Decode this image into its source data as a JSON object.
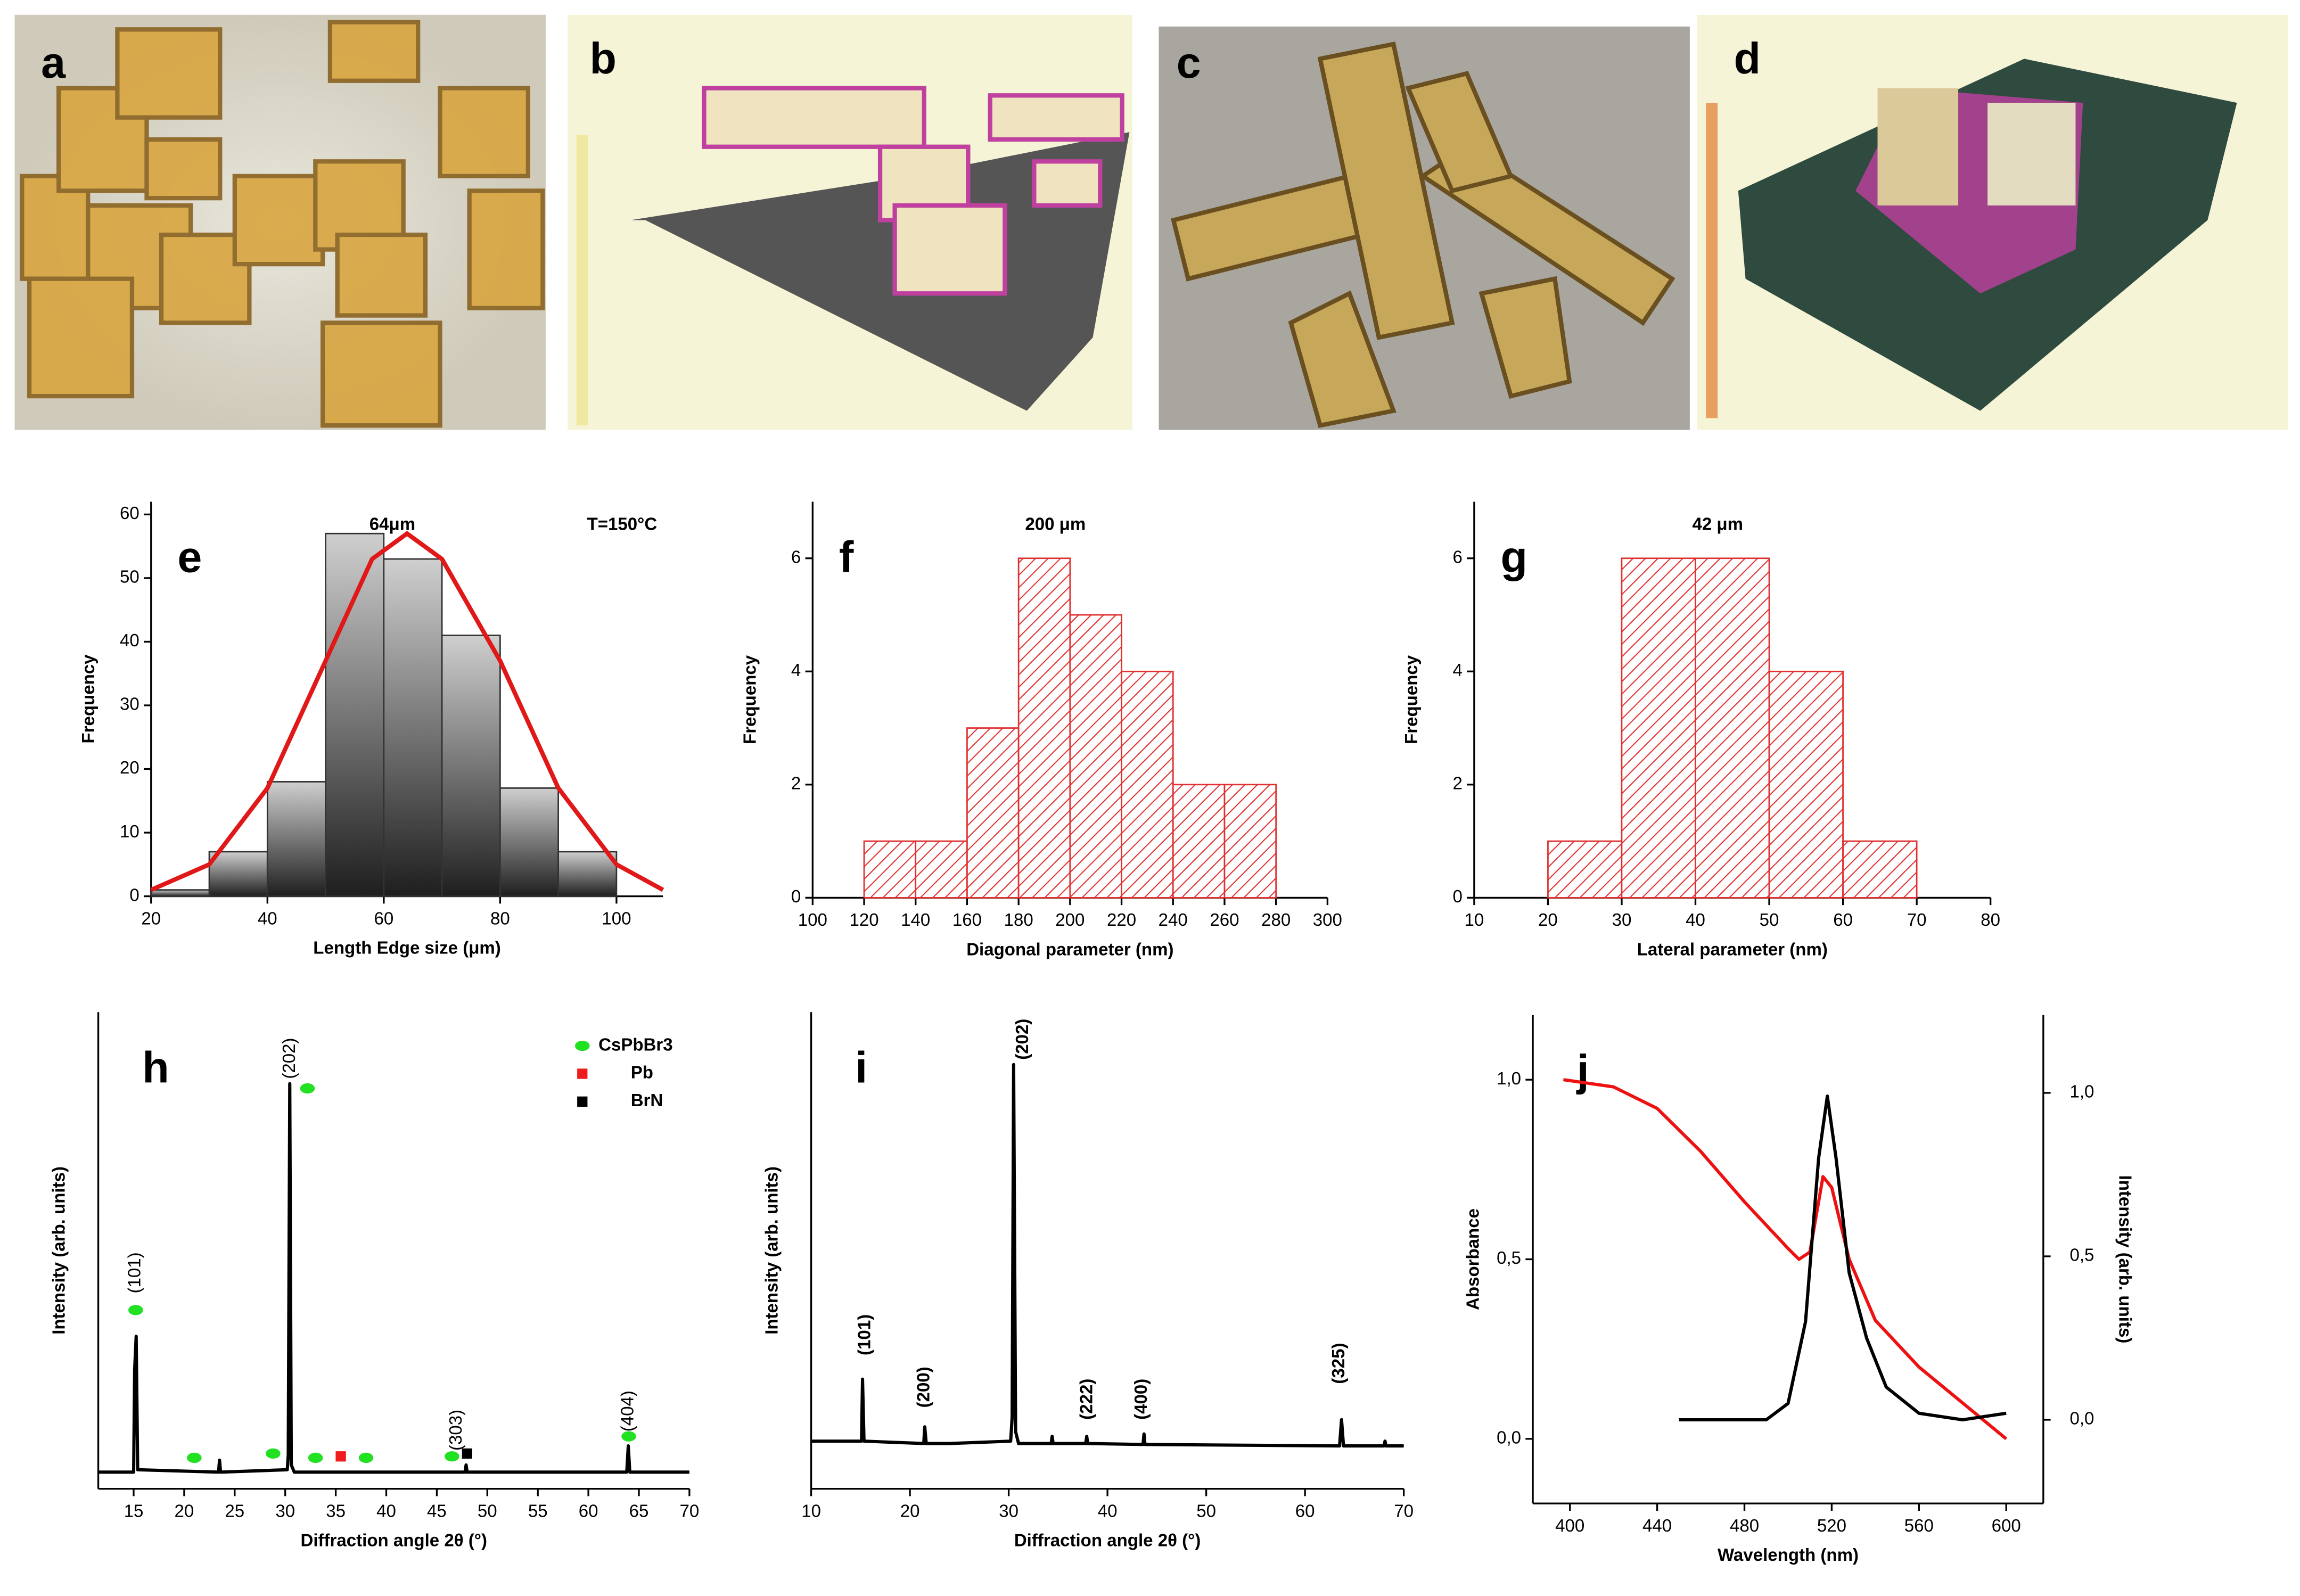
{
  "panels": [
    "a",
    "b",
    "c",
    "d"
  ],
  "chart_data": [
    {
      "type": "histogram",
      "label": "e",
      "title": "64μm",
      "annotation": "T=150°C",
      "xlabel": "Length Edge size (μm)",
      "ylabel": "Frequency",
      "bins": [
        20,
        30,
        40,
        50,
        60,
        70,
        80,
        90,
        100
      ],
      "values": [
        1,
        7,
        18,
        57,
        53,
        41,
        17,
        7
      ],
      "color": "#1e1e1e",
      "pattern": "gradient",
      "fit": {
        "color": "#e01818",
        "x": [
          20,
          30,
          40,
          50,
          58,
          64,
          70,
          80,
          90,
          100,
          108
        ],
        "values": [
          1,
          5,
          17,
          37,
          53,
          57,
          53,
          37,
          17,
          5,
          1
        ]
      },
      "xlim": [
        20,
        108
      ],
      "xticks": [
        20,
        40,
        60,
        80,
        100
      ],
      "ylim": [
        0,
        62
      ],
      "yticks": [
        0,
        10,
        20,
        30,
        40,
        50,
        60
      ]
    },
    {
      "type": "histogram",
      "label": "f",
      "title": "200 μm",
      "xlabel": "Diagonal parameter (nm)",
      "ylabel": "Frequency",
      "bins": [
        120,
        140,
        160,
        180,
        200,
        220,
        240,
        260,
        280
      ],
      "values": [
        1,
        1,
        3,
        6,
        5,
        4,
        2,
        2
      ],
      "color": "#e03030",
      "pattern": "hatch",
      "xlim": [
        100,
        300
      ],
      "xticks": [
        100,
        120,
        140,
        160,
        180,
        200,
        220,
        240,
        260,
        280,
        300
      ],
      "ylim": [
        0,
        7
      ],
      "yticks": [
        0,
        2,
        4,
        6
      ]
    },
    {
      "type": "histogram",
      "label": "g",
      "title": "42 μm",
      "xlabel": "Lateral parameter (nm)",
      "ylabel": "Frequency",
      "bins": [
        20,
        30,
        40,
        50,
        60,
        70
      ],
      "values": [
        1,
        6,
        6,
        4,
        1
      ],
      "color": "#e03030",
      "pattern": "hatch",
      "xlim": [
        10,
        80
      ],
      "xticks": [
        10,
        20,
        30,
        40,
        50,
        60,
        70,
        80
      ],
      "ylim": [
        0,
        7
      ],
      "yticks": [
        0,
        2,
        4,
        6
      ]
    },
    {
      "type": "line",
      "label": "h",
      "xlabel": "Diffraction angle 2θ (°)",
      "ylabel": "Intensity (arb. units)",
      "xlim": [
        11.5,
        70
      ],
      "xticks": [
        15,
        20,
        25,
        30,
        35,
        40,
        45,
        50,
        55,
        60,
        65,
        70
      ],
      "ylim": [
        0,
        1
      ],
      "series": [
        {
          "color": "#000000",
          "x": [
            11.5,
            15,
            15.1,
            15.25,
            15.4,
            23.4,
            23.5,
            23.6,
            30.2,
            30.3,
            30.45,
            30.6,
            30.9,
            47.8,
            47.9,
            48,
            63.8,
            63.95,
            64.1,
            70
          ],
          "values": [
            0.035,
            0.035,
            0.25,
            0.32,
            0.04,
            0.035,
            0.06,
            0.035,
            0.04,
            0.07,
            0.85,
            0.05,
            0.035,
            0.035,
            0.05,
            0.035,
            0.035,
            0.09,
            0.035,
            0.035
          ]
        }
      ],
      "markers": [
        {
          "name": "CsPbBr3",
          "color": "#22e022",
          "shape": "ellipse",
          "x": [
            15.2,
            21,
            28.8,
            32.2,
            33,
            38,
            46.5,
            64
          ],
          "values": [
            0.375,
            0.065,
            0.074,
            0.84,
            0.065,
            0.065,
            0.068,
            0.11
          ]
        },
        {
          "name": "Pb",
          "color": "#ee1c1c",
          "shape": "square",
          "x": [
            35.5
          ],
          "values": [
            0.068
          ]
        },
        {
          "name": "BrN",
          "color": "#000000",
          "shape": "square",
          "x": [
            48
          ],
          "values": [
            0.074
          ]
        }
      ],
      "legend": "upper right",
      "annotations": [
        {
          "text": "(101)",
          "x": 15.2,
          "y": 0.41
        },
        {
          "text": "(202)",
          "x": 30.5,
          "y": 0.86
        },
        {
          "text": "(303)",
          "x": 47,
          "y": 0.08
        },
        {
          "text": "(404)",
          "x": 64,
          "y": 0.12
        }
      ],
      "annotation_style": "normal"
    },
    {
      "type": "line",
      "label": "i",
      "xlabel": "Diffraction angle 2θ (°)",
      "ylabel": "Intensity (arb. units)",
      "xlim": [
        10,
        70
      ],
      "xticks": [
        10,
        20,
        30,
        40,
        50,
        60,
        70
      ],
      "ylim": [
        0,
        1
      ],
      "series": [
        {
          "color": "#000000",
          "x": [
            10,
            15.1,
            15.2,
            15.35,
            21.4,
            21.5,
            21.65,
            24,
            30.2,
            30.35,
            30.5,
            30.7,
            31,
            34.3,
            34.4,
            34.5,
            37.8,
            37.9,
            38,
            43.6,
            43.7,
            43.8,
            63.5,
            63.7,
            63.9,
            68,
            68.1,
            68.2,
            70
          ],
          "values": [
            0.1,
            0.1,
            0.23,
            0.1,
            0.095,
            0.13,
            0.095,
            0.095,
            0.1,
            0.15,
            0.89,
            0.12,
            0.095,
            0.095,
            0.11,
            0.095,
            0.095,
            0.11,
            0.095,
            0.093,
            0.115,
            0.093,
            0.09,
            0.145,
            0.09,
            0.09,
            0.1,
            0.09,
            0.09
          ]
        }
      ],
      "annotations": [
        {
          "text": "(101)",
          "x": 15.5,
          "y": 0.28
        },
        {
          "text": "(200)",
          "x": 21.5,
          "y": 0.17
        },
        {
          "text": "(202)",
          "x": 31.5,
          "y": 0.9
        },
        {
          "text": "(222)",
          "x": 38,
          "y": 0.145
        },
        {
          "text": "(400)",
          "x": 43.5,
          "y": 0.145
        },
        {
          "text": "(325)",
          "x": 63.5,
          "y": 0.22
        }
      ],
      "annotation_style": "bold"
    },
    {
      "type": "line",
      "label": "j",
      "xlabel": "Wavelength (nm)",
      "ylabel": "Absorbance",
      "y2label": "Intensity (arb. units)",
      "xlim": [
        383,
        617
      ],
      "xticks": [
        400,
        440,
        480,
        520,
        560,
        600
      ],
      "ylim": [
        -0.18,
        1.18
      ],
      "yticks": [
        {
          "value": 0,
          "label": "0,0"
        },
        {
          "value": 0.5,
          "label": "0,5"
        },
        {
          "value": 1,
          "label": "1,0"
        }
      ],
      "y2lim": [
        -0.256,
        1.238
      ],
      "y2ticks": [
        {
          "value": 0,
          "label": "0,0"
        },
        {
          "value": 0.5,
          "label": "0,5"
        },
        {
          "value": 1,
          "label": "1,0"
        }
      ],
      "series": [
        {
          "color": "#ee1111",
          "x": [
            397,
            420,
            440,
            460,
            480,
            500,
            505,
            510,
            516,
            520,
            528,
            540,
            560,
            580,
            600
          ],
          "values": [
            1.0,
            0.98,
            0.92,
            0.8,
            0.66,
            0.53,
            0.5,
            0.52,
            0.73,
            0.7,
            0.5,
            0.33,
            0.2,
            0.1,
            0.0
          ]
        },
        {
          "color": "#000000",
          "axis": "y2",
          "x": [
            450,
            490,
            500,
            508,
            514,
            518,
            522,
            528,
            536,
            545,
            560,
            580,
            600
          ],
          "values": [
            0.0,
            0.0,
            0.05,
            0.3,
            0.8,
            0.99,
            0.8,
            0.45,
            0.25,
            0.1,
            0.02,
            0.0,
            0.02
          ]
        }
      ]
    }
  ]
}
